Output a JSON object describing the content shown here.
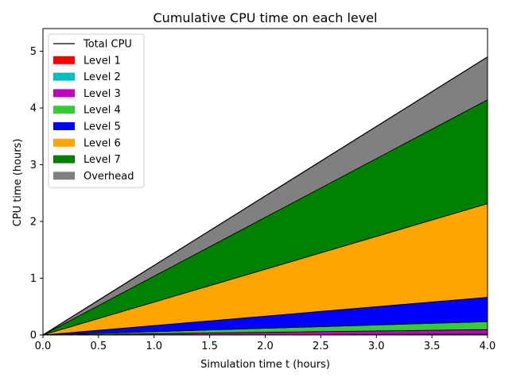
{
  "chart_data": {
    "type": "area",
    "title": "Cumulative CPU time on each level",
    "xlabel": "Simulation time t (hours)",
    "ylabel": "CPU time (hours)",
    "xlim": [
      0,
      4
    ],
    "ylim": [
      0,
      5.4
    ],
    "xticks": [
      "0.0",
      "0.5",
      "1.0",
      "1.5",
      "2.0",
      "2.5",
      "3.0",
      "3.5",
      "4.0"
    ],
    "yticks": [
      "0",
      "1",
      "2",
      "3",
      "4",
      "5"
    ],
    "grid": false,
    "legend_position": "top-left",
    "x": [
      0,
      4
    ],
    "total_line": {
      "name": "Total CPU",
      "color": "#000000",
      "values": [
        0,
        4.9
      ]
    },
    "series": [
      {
        "name": "Level 1",
        "color": "#ff0000",
        "values": [
          0,
          0.005
        ]
      },
      {
        "name": "Level 2",
        "color": "#00bfbf",
        "values": [
          0,
          0.01
        ]
      },
      {
        "name": "Level 3",
        "color": "#bf00bf",
        "values": [
          0,
          0.08
        ]
      },
      {
        "name": "Level 4",
        "color": "#32cd32",
        "values": [
          0,
          0.14
        ]
      },
      {
        "name": "Level 5",
        "color": "#0000ff",
        "values": [
          0,
          0.43
        ]
      },
      {
        "name": "Level 6",
        "color": "#ffa500",
        "values": [
          0,
          1.65
        ]
      },
      {
        "name": "Level 7",
        "color": "#008000",
        "values": [
          0,
          1.83
        ]
      },
      {
        "name": "Overhead",
        "color": "#808080",
        "values": [
          0,
          0.755
        ]
      }
    ]
  }
}
